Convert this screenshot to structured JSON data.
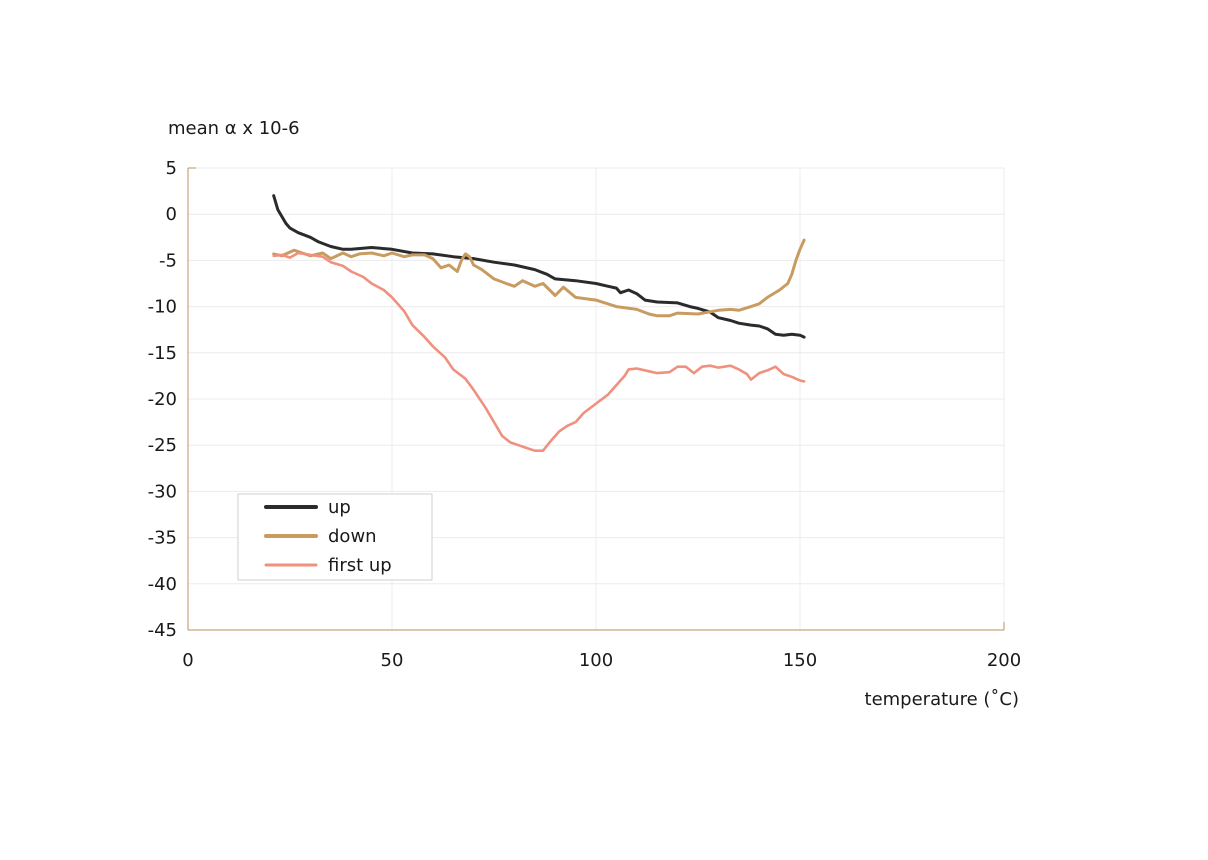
{
  "chart_data": {
    "type": "line",
    "title": "",
    "ylabel": "mean α x 10-6",
    "xlabel": "temperature (˚C)",
    "xlim": [
      0,
      200
    ],
    "ylim": [
      -45,
      5
    ],
    "x_ticks": [
      "0",
      "50",
      "100",
      "150",
      "200"
    ],
    "y_ticks": [
      "5",
      "0",
      "-5",
      "-10",
      "-15",
      "-20",
      "-25",
      "-30",
      "-35",
      "-40",
      "-45"
    ],
    "grid": true,
    "legend_position": "bottom-left",
    "series": [
      {
        "name": "up",
        "color": "#2b2b2b",
        "x": [
          21,
          22,
          24,
          25,
          27,
          30,
          32,
          35,
          38,
          40,
          45,
          50,
          55,
          60,
          65,
          70,
          75,
          80,
          85,
          88,
          90,
          95,
          100,
          103,
          105,
          106,
          108,
          110,
          112,
          115,
          120,
          123,
          125,
          128,
          130,
          133,
          135,
          138,
          140,
          142,
          144,
          146,
          148,
          150,
          151
        ],
        "y": [
          2,
          0.5,
          -1,
          -1.5,
          -2,
          -2.5,
          -3,
          -3.5,
          -3.8,
          -3.8,
          -3.6,
          -3.8,
          -4.2,
          -4.3,
          -4.6,
          -4.8,
          -5.2,
          -5.5,
          -6,
          -6.5,
          -7,
          -7.2,
          -7.5,
          -7.8,
          -8,
          -8.5,
          -8.2,
          -8.6,
          -9.3,
          -9.5,
          -9.6,
          -10,
          -10.2,
          -10.6,
          -11.2,
          -11.5,
          -11.8,
          -12,
          -12.1,
          -12.4,
          -13,
          -13.1,
          -13,
          -13.1,
          -13.3
        ]
      },
      {
        "name": "down",
        "color": "#c89b60",
        "x": [
          21,
          23,
          26,
          28,
          30,
          33,
          35,
          38,
          40,
          42,
          45,
          48,
          50,
          53,
          55,
          58,
          60,
          62,
          64,
          66,
          67,
          68,
          69,
          70,
          72,
          75,
          78,
          80,
          82,
          85,
          87,
          90,
          92,
          95,
          100,
          105,
          110,
          113,
          115,
          118,
          120,
          125,
          130,
          133,
          135,
          138,
          140,
          142,
          145,
          147,
          148,
          149,
          150,
          151
        ],
        "y": [
          -4.3,
          -4.5,
          -3.9,
          -4.2,
          -4.5,
          -4.2,
          -4.8,
          -4.2,
          -4.6,
          -4.3,
          -4.2,
          -4.5,
          -4.2,
          -4.6,
          -4.4,
          -4.4,
          -4.8,
          -5.8,
          -5.5,
          -6.2,
          -5,
          -4.3,
          -4.6,
          -5.5,
          -6,
          -7,
          -7.5,
          -7.8,
          -7.2,
          -7.8,
          -7.5,
          -8.8,
          -7.9,
          -9,
          -9.3,
          -10,
          -10.3,
          -10.8,
          -11,
          -11,
          -10.7,
          -10.8,
          -10.4,
          -10.3,
          -10.4,
          -10,
          -9.7,
          -9,
          -8.2,
          -7.5,
          -6.5,
          -5,
          -3.8,
          -2.8
        ]
      },
      {
        "name": "first up",
        "color": "#f0907e",
        "x": [
          21,
          23,
          25,
          27,
          30,
          33,
          35,
          38,
          40,
          43,
          45,
          48,
          50,
          53,
          55,
          58,
          60,
          63,
          65,
          68,
          70,
          73,
          75,
          77,
          79,
          81,
          83,
          85,
          87,
          89,
          91,
          93,
          95,
          97,
          100,
          103,
          105,
          107,
          108,
          110,
          113,
          115,
          118,
          120,
          122,
          124,
          126,
          128,
          130,
          133,
          135,
          137,
          138,
          140,
          142,
          144,
          146,
          148,
          150,
          151
        ],
        "y": [
          -4.5,
          -4.4,
          -4.7,
          -4.2,
          -4.4,
          -4.6,
          -5.2,
          -5.6,
          -6.2,
          -6.8,
          -7.5,
          -8.2,
          -9,
          -10.5,
          -12,
          -13.3,
          -14.3,
          -15.5,
          -16.8,
          -17.8,
          -19,
          -21,
          -22.5,
          -24,
          -24.7,
          -25,
          -25.3,
          -25.6,
          -25.6,
          -24.5,
          -23.5,
          -22.9,
          -22.5,
          -21.5,
          -20.5,
          -19.5,
          -18.5,
          -17.5,
          -16.8,
          -16.7,
          -17,
          -17.2,
          -17.1,
          -16.5,
          -16.5,
          -17.2,
          -16.5,
          -16.4,
          -16.6,
          -16.4,
          -16.8,
          -17.3,
          -17.9,
          -17.2,
          -16.9,
          -16.5,
          -17.3,
          -17.6,
          -18,
          -18.1
        ]
      }
    ]
  }
}
